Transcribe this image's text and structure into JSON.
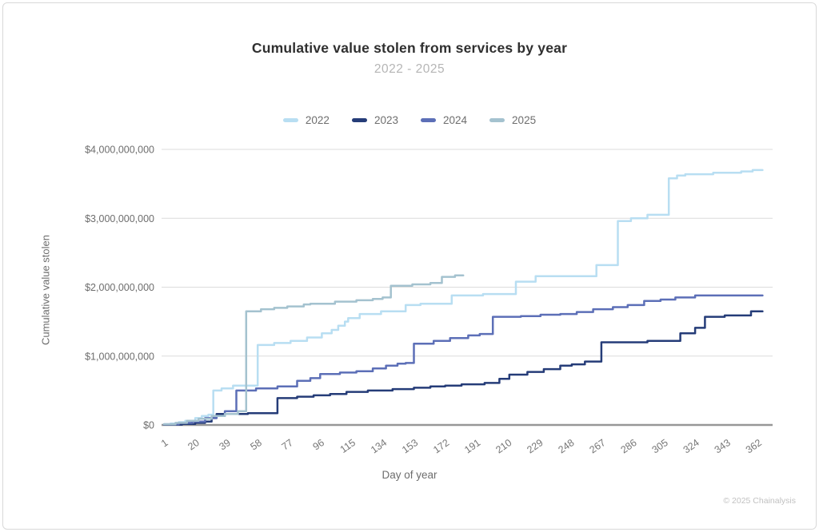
{
  "header": {
    "title": "Cumulative value stolen from services by year",
    "subtitle": "2022 - 2025"
  },
  "legend": {
    "items": [
      {
        "label": "2022",
        "color": "#b8def2"
      },
      {
        "label": "2023",
        "color": "#253c78"
      },
      {
        "label": "2024",
        "color": "#5c6fb7"
      },
      {
        "label": "2025",
        "color": "#a4c2cf"
      }
    ]
  },
  "chart_data": {
    "type": "line",
    "line_style": "step-after",
    "title": "Cumulative value stolen from services by year",
    "subtitle": "2022 - 2025",
    "xlabel": "Day of year",
    "ylabel": "Cumulative value stolen",
    "units": "USD billions",
    "xlim": [
      1,
      371
    ],
    "ylim": [
      0,
      4
    ],
    "grid": "horizontal",
    "legend_position": "top",
    "x_ticks": [
      1,
      20,
      39,
      58,
      77,
      96,
      115,
      134,
      153,
      172,
      191,
      210,
      229,
      248,
      267,
      286,
      305,
      324,
      343,
      362
    ],
    "x_tick_rotation": -35,
    "y_ticks": [
      {
        "value": 0,
        "label": "$0"
      },
      {
        "value": 1,
        "label": "$1,000,000,000"
      },
      {
        "value": 2,
        "label": "$2,000,000,000"
      },
      {
        "value": 3,
        "label": "$3,000,000,000"
      },
      {
        "value": 4,
        "label": "$4,000,000,000"
      }
    ],
    "series": [
      {
        "name": "2022",
        "color": "#b8def2",
        "end_day": 365,
        "points": [
          [
            1,
            0.01
          ],
          [
            5,
            0.02
          ],
          [
            10,
            0.04
          ],
          [
            14,
            0.06
          ],
          [
            20,
            0.1
          ],
          [
            24,
            0.13
          ],
          [
            28,
            0.15
          ],
          [
            31,
            0.5
          ],
          [
            36,
            0.53
          ],
          [
            43,
            0.57
          ],
          [
            58,
            1.16
          ],
          [
            68,
            1.19
          ],
          [
            78,
            1.22
          ],
          [
            88,
            1.27
          ],
          [
            97,
            1.33
          ],
          [
            103,
            1.38
          ],
          [
            107,
            1.44
          ],
          [
            111,
            1.5
          ],
          [
            113,
            1.55
          ],
          [
            120,
            1.61
          ],
          [
            133,
            1.65
          ],
          [
            148,
            1.74
          ],
          [
            157,
            1.76
          ],
          [
            176,
            1.88
          ],
          [
            195,
            1.9
          ],
          [
            215,
            2.08
          ],
          [
            227,
            2.16
          ],
          [
            264,
            2.32
          ],
          [
            277,
            2.96
          ],
          [
            285,
            3.0
          ],
          [
            295,
            3.05
          ],
          [
            308,
            3.58
          ],
          [
            313,
            3.62
          ],
          [
            318,
            3.64
          ],
          [
            335,
            3.66
          ],
          [
            352,
            3.68
          ],
          [
            359,
            3.7
          ]
        ]
      },
      {
        "name": "2023",
        "color": "#253c78",
        "end_day": 365,
        "points": [
          [
            1,
            0.005
          ],
          [
            12,
            0.015
          ],
          [
            20,
            0.03
          ],
          [
            26,
            0.05
          ],
          [
            30,
            0.1
          ],
          [
            33,
            0.16
          ],
          [
            52,
            0.17
          ],
          [
            70,
            0.39
          ],
          [
            82,
            0.41
          ],
          [
            92,
            0.43
          ],
          [
            102,
            0.45
          ],
          [
            112,
            0.48
          ],
          [
            125,
            0.5
          ],
          [
            140,
            0.52
          ],
          [
            153,
            0.54
          ],
          [
            163,
            0.56
          ],
          [
            172,
            0.57
          ],
          [
            182,
            0.59
          ],
          [
            196,
            0.61
          ],
          [
            205,
            0.67
          ],
          [
            211,
            0.73
          ],
          [
            222,
            0.77
          ],
          [
            232,
            0.81
          ],
          [
            242,
            0.86
          ],
          [
            249,
            0.88
          ],
          [
            257,
            0.92
          ],
          [
            267,
            1.2
          ],
          [
            295,
            1.22
          ],
          [
            315,
            1.33
          ],
          [
            324,
            1.41
          ],
          [
            330,
            1.57
          ],
          [
            342,
            1.59
          ],
          [
            358,
            1.65
          ]
        ]
      },
      {
        "name": "2024",
        "color": "#5c6fb7",
        "end_day": 365,
        "points": [
          [
            1,
            0.01
          ],
          [
            10,
            0.03
          ],
          [
            18,
            0.05
          ],
          [
            26,
            0.1
          ],
          [
            33,
            0.13
          ],
          [
            38,
            0.2
          ],
          [
            45,
            0.5
          ],
          [
            57,
            0.53
          ],
          [
            70,
            0.56
          ],
          [
            82,
            0.64
          ],
          [
            90,
            0.68
          ],
          [
            96,
            0.74
          ],
          [
            108,
            0.76
          ],
          [
            118,
            0.78
          ],
          [
            128,
            0.82
          ],
          [
            136,
            0.86
          ],
          [
            143,
            0.89
          ],
          [
            148,
            0.9
          ],
          [
            153,
            1.18
          ],
          [
            165,
            1.22
          ],
          [
            175,
            1.26
          ],
          [
            186,
            1.3
          ],
          [
            193,
            1.32
          ],
          [
            201,
            1.57
          ],
          [
            218,
            1.58
          ],
          [
            230,
            1.6
          ],
          [
            242,
            1.61
          ],
          [
            252,
            1.64
          ],
          [
            262,
            1.68
          ],
          [
            274,
            1.71
          ],
          [
            283,
            1.74
          ],
          [
            293,
            1.8
          ],
          [
            303,
            1.82
          ],
          [
            312,
            1.85
          ],
          [
            324,
            1.88
          ]
        ]
      },
      {
        "name": "2025",
        "color": "#a4c2cf",
        "end_day": 183,
        "points": [
          [
            1,
            0.01
          ],
          [
            8,
            0.03
          ],
          [
            15,
            0.06
          ],
          [
            22,
            0.09
          ],
          [
            30,
            0.13
          ],
          [
            38,
            0.16
          ],
          [
            46,
            0.2
          ],
          [
            51,
            1.65
          ],
          [
            60,
            1.68
          ],
          [
            68,
            1.7
          ],
          [
            76,
            1.72
          ],
          [
            86,
            1.75
          ],
          [
            90,
            1.76
          ],
          [
            105,
            1.79
          ],
          [
            118,
            1.81
          ],
          [
            128,
            1.83
          ],
          [
            134,
            1.85
          ],
          [
            139,
            2.02
          ],
          [
            152,
            2.04
          ],
          [
            163,
            2.06
          ],
          [
            170,
            2.15
          ],
          [
            178,
            2.17
          ]
        ]
      }
    ]
  },
  "style": {
    "gridline_color": "#dcdcdc",
    "baseline_color": "#979797",
    "background": "#ffffff"
  },
  "footer": {
    "copyright": "© 2025 Chainalysis"
  }
}
